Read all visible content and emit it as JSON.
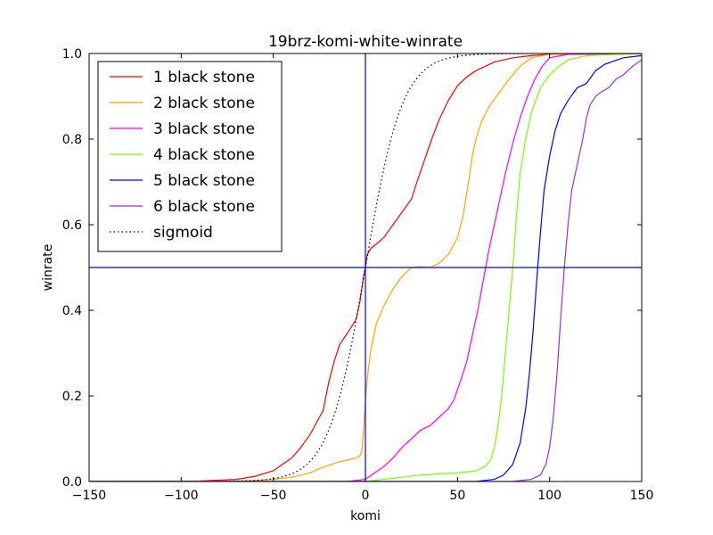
{
  "chart_data": {
    "type": "line",
    "title": "19brz-komi-white-winrate",
    "xlabel": "komi",
    "ylabel": "winrate",
    "xlim": [
      -150,
      150
    ],
    "ylim": [
      0.0,
      1.0
    ],
    "xticks": [
      "−150",
      "−100",
      "−50",
      "0",
      "50",
      "100",
      "150"
    ],
    "xtick_values": [
      -150,
      -100,
      -50,
      0,
      50,
      100,
      150
    ],
    "yticks": [
      "0.0",
      "0.2",
      "0.4",
      "0.6",
      "0.8",
      "1.0"
    ],
    "ytick_values": [
      0.0,
      0.2,
      0.4,
      0.6,
      0.8,
      1.0
    ],
    "legend_position": "upper-left",
    "reference_lines": {
      "vertical_x": 0,
      "horizontal_y": 0.5,
      "color": "#0000ff"
    },
    "series": [
      {
        "name": "1 black stone",
        "color": "#ff0000",
        "style": "solid",
        "points": [
          [
            -150,
            0
          ],
          [
            -90,
            0.001
          ],
          [
            -70,
            0.005
          ],
          [
            -60,
            0.012
          ],
          [
            -50,
            0.025
          ],
          [
            -45,
            0.04
          ],
          [
            -40,
            0.055
          ],
          [
            -35,
            0.08
          ],
          [
            -30,
            0.11
          ],
          [
            -25,
            0.15
          ],
          [
            -23,
            0.165
          ],
          [
            -20,
            0.23
          ],
          [
            -17,
            0.28
          ],
          [
            -14,
            0.32
          ],
          [
            -10,
            0.345
          ],
          [
            -7,
            0.365
          ],
          [
            -5,
            0.38
          ],
          [
            -3,
            0.42
          ],
          [
            -1,
            0.48
          ],
          [
            0,
            0.5
          ],
          [
            1,
            0.53
          ],
          [
            3,
            0.545
          ],
          [
            6,
            0.555
          ],
          [
            10,
            0.57
          ],
          [
            15,
            0.6
          ],
          [
            20,
            0.63
          ],
          [
            25,
            0.66
          ],
          [
            28,
            0.7
          ],
          [
            32,
            0.75
          ],
          [
            36,
            0.8
          ],
          [
            40,
            0.845
          ],
          [
            45,
            0.89
          ],
          [
            50,
            0.925
          ],
          [
            55,
            0.945
          ],
          [
            60,
            0.96
          ],
          [
            65,
            0.97
          ],
          [
            70,
            0.98
          ],
          [
            80,
            0.99
          ],
          [
            90,
            0.995
          ],
          [
            100,
            0.998
          ],
          [
            150,
            1.0
          ]
        ]
      },
      {
        "name": "2 black stone",
        "color": "#ffa500",
        "style": "solid",
        "points": [
          [
            -150,
            0
          ],
          [
            -70,
            0
          ],
          [
            -50,
            0.005
          ],
          [
            -40,
            0.01
          ],
          [
            -30,
            0.02
          ],
          [
            -25,
            0.03
          ],
          [
            -20,
            0.038
          ],
          [
            -15,
            0.045
          ],
          [
            -10,
            0.05
          ],
          [
            -5,
            0.055
          ],
          [
            -3,
            0.06
          ],
          [
            -2,
            0.07
          ],
          [
            -1,
            0.12
          ],
          [
            0,
            0.19
          ],
          [
            1,
            0.24
          ],
          [
            3,
            0.31
          ],
          [
            6,
            0.37
          ],
          [
            10,
            0.41
          ],
          [
            15,
            0.45
          ],
          [
            20,
            0.48
          ],
          [
            25,
            0.5
          ],
          [
            30,
            0.502
          ],
          [
            35,
            0.5
          ],
          [
            40,
            0.51
          ],
          [
            45,
            0.53
          ],
          [
            50,
            0.57
          ],
          [
            53,
            0.62
          ],
          [
            56,
            0.7
          ],
          [
            58,
            0.76
          ],
          [
            60,
            0.8
          ],
          [
            63,
            0.84
          ],
          [
            67,
            0.875
          ],
          [
            72,
            0.905
          ],
          [
            78,
            0.94
          ],
          [
            84,
            0.97
          ],
          [
            90,
            0.99
          ],
          [
            100,
            0.998
          ],
          [
            150,
            1.0
          ]
        ]
      },
      {
        "name": "3 black stone",
        "color": "#ff00ff",
        "style": "solid",
        "points": [
          [
            -150,
            0
          ],
          [
            -10,
            0
          ],
          [
            0,
            0.005
          ],
          [
            5,
            0.02
          ],
          [
            10,
            0.035
          ],
          [
            15,
            0.055
          ],
          [
            20,
            0.08
          ],
          [
            25,
            0.1
          ],
          [
            30,
            0.12
          ],
          [
            35,
            0.13
          ],
          [
            40,
            0.15
          ],
          [
            45,
            0.17
          ],
          [
            48,
            0.19
          ],
          [
            52,
            0.24
          ],
          [
            55,
            0.28
          ],
          [
            58,
            0.34
          ],
          [
            61,
            0.4
          ],
          [
            64,
            0.47
          ],
          [
            67,
            0.54
          ],
          [
            70,
            0.6
          ],
          [
            73,
            0.66
          ],
          [
            76,
            0.72
          ],
          [
            80,
            0.79
          ],
          [
            84,
            0.85
          ],
          [
            88,
            0.9
          ],
          [
            92,
            0.94
          ],
          [
            96,
            0.97
          ],
          [
            100,
            0.99
          ],
          [
            110,
            0.998
          ],
          [
            150,
            1.0
          ]
        ]
      },
      {
        "name": "4 black stone",
        "color": "#7cfc00",
        "style": "solid",
        "points": [
          [
            -150,
            0
          ],
          [
            0,
            0
          ],
          [
            10,
            0.005
          ],
          [
            20,
            0.01
          ],
          [
            30,
            0.015
          ],
          [
            40,
            0.018
          ],
          [
            50,
            0.02
          ],
          [
            60,
            0.025
          ],
          [
            65,
            0.035
          ],
          [
            68,
            0.05
          ],
          [
            70,
            0.08
          ],
          [
            72,
            0.13
          ],
          [
            74,
            0.2
          ],
          [
            76,
            0.3
          ],
          [
            78,
            0.4
          ],
          [
            80,
            0.5
          ],
          [
            82,
            0.62
          ],
          [
            84,
            0.72
          ],
          [
            87,
            0.8
          ],
          [
            90,
            0.86
          ],
          [
            95,
            0.92
          ],
          [
            100,
            0.95
          ],
          [
            105,
            0.97
          ],
          [
            110,
            0.985
          ],
          [
            120,
            0.995
          ],
          [
            150,
            1.0
          ]
        ]
      },
      {
        "name": "5 black stone",
        "color": "#0000ff",
        "style": "solid",
        "points": [
          [
            -150,
            0
          ],
          [
            60,
            0
          ],
          [
            70,
            0.005
          ],
          [
            75,
            0.015
          ],
          [
            80,
            0.04
          ],
          [
            84,
            0.09
          ],
          [
            87,
            0.17
          ],
          [
            89,
            0.25
          ],
          [
            91,
            0.35
          ],
          [
            93,
            0.47
          ],
          [
            95,
            0.58
          ],
          [
            97,
            0.68
          ],
          [
            100,
            0.76
          ],
          [
            103,
            0.82
          ],
          [
            106,
            0.86
          ],
          [
            110,
            0.89
          ],
          [
            115,
            0.92
          ],
          [
            120,
            0.93
          ],
          [
            125,
            0.96
          ],
          [
            130,
            0.975
          ],
          [
            140,
            0.99
          ],
          [
            150,
            0.995
          ]
        ]
      },
      {
        "name": "6 black stone",
        "color": "#9932cc",
        "style": "solid",
        "points": [
          [
            -150,
            0
          ],
          [
            80,
            0
          ],
          [
            90,
            0.005
          ],
          [
            95,
            0.015
          ],
          [
            98,
            0.04
          ],
          [
            100,
            0.08
          ],
          [
            102,
            0.15
          ],
          [
            104,
            0.25
          ],
          [
            106,
            0.38
          ],
          [
            108,
            0.5
          ],
          [
            110,
            0.6
          ],
          [
            112,
            0.68
          ],
          [
            114,
            0.72
          ],
          [
            116,
            0.76
          ],
          [
            118,
            0.8
          ],
          [
            120,
            0.85
          ],
          [
            122,
            0.88
          ],
          [
            125,
            0.9
          ],
          [
            128,
            0.91
          ],
          [
            132,
            0.92
          ],
          [
            136,
            0.94
          ],
          [
            140,
            0.95
          ],
          [
            145,
            0.97
          ],
          [
            150,
            0.985
          ]
        ]
      },
      {
        "name": "sigmoid",
        "color": "#000000",
        "style": "dotted",
        "function": "sigmoid",
        "scale": 10
      }
    ]
  }
}
